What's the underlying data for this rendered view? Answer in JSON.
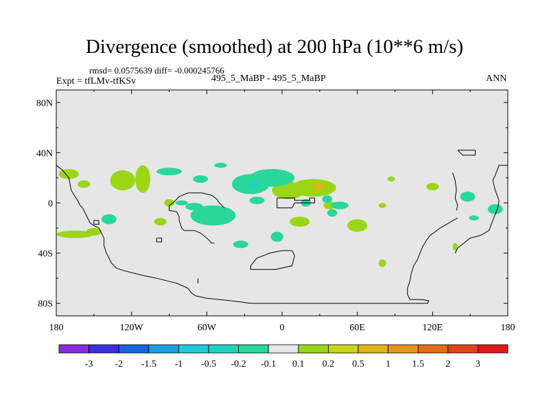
{
  "chart_data": {
    "type": "heatmap",
    "title": "Divergence (smoothed) at 200 hPa (10**6 m/s)",
    "stats_text": "rmsd= 0.0575639 diff= -0.000245766",
    "expt_text": "Expt = tfLMv-tfKSv",
    "center_label": "495_5_MaBP - 495_5_MaBP",
    "season": "ANN",
    "xlim": [
      -180,
      180
    ],
    "ylim": [
      -90,
      90
    ],
    "x_ticks": [
      {
        "value": -180,
        "label": "180"
      },
      {
        "value": -120,
        "label": "120W"
      },
      {
        "value": -60,
        "label": "60W"
      },
      {
        "value": 0,
        "label": "0"
      },
      {
        "value": 60,
        "label": "60E"
      },
      {
        "value": 120,
        "label": "120E"
      },
      {
        "value": 180,
        "label": "180"
      }
    ],
    "y_ticks": [
      {
        "value": 80,
        "label": "80N"
      },
      {
        "value": 40,
        "label": "40N"
      },
      {
        "value": 0,
        "label": "0"
      },
      {
        "value": -40,
        "label": "40S"
      },
      {
        "value": -80,
        "label": "80S"
      }
    ],
    "colorbar": {
      "colors": [
        "#8a2be2",
        "#3d2ee0",
        "#1a64e0",
        "#1a9ee0",
        "#21c8d8",
        "#1fd2c0",
        "#2ad79a",
        "#e6e6e6",
        "#9bd616",
        "#c8d61a",
        "#e0b41a",
        "#e0961a",
        "#e06a1a",
        "#e0441a",
        "#e01a1a"
      ],
      "labels": [
        "-3",
        "-2",
        "-1.5",
        "-1",
        "-0.5",
        "-0.2",
        "-0.1",
        "0.1",
        "0.2",
        "0.5",
        "1",
        "1.5",
        "2",
        "3"
      ]
    },
    "regions": [
      {
        "level": "0.1 to 0.2",
        "color": "#9bd616",
        "lon": -170,
        "lat": 23,
        "dlon": 8,
        "dlat": 4
      },
      {
        "level": "0.1 to 0.2",
        "color": "#9bd616",
        "lon": -158,
        "lat": 15,
        "dlon": 5,
        "dlat": 3
      },
      {
        "level": "0.1 to 0.2",
        "color": "#9bd616",
        "lon": -127,
        "lat": 18,
        "dlon": 10,
        "dlat": 8
      },
      {
        "level": "0.1 to 0.2",
        "color": "#9bd616",
        "lon": -111,
        "lat": 19,
        "dlon": 6,
        "dlat": 11
      },
      {
        "level": "0.1 to 0.2",
        "color": "#9bd616",
        "lon": -165,
        "lat": -25,
        "dlon": 15,
        "dlat": 3
      },
      {
        "level": "0.1 to 0.2",
        "color": "#9bd616",
        "lon": -150,
        "lat": -23,
        "dlon": 6,
        "dlat": 3
      },
      {
        "level": "0.1 to 0.2",
        "color": "#9bd616",
        "lon": -97,
        "lat": -15,
        "dlon": 5,
        "dlat": 3
      },
      {
        "level": "0.1 to 0.2",
        "color": "#9bd616",
        "lon": 5,
        "lat": 10,
        "dlon": 13,
        "dlat": 7
      },
      {
        "level": "0.1 to 0.2",
        "color": "#9bd616",
        "lon": 25,
        "lat": 12,
        "dlon": 18,
        "dlat": 7
      },
      {
        "level": "0.1 to 0.2",
        "color": "#9bd616",
        "lon": 60,
        "lat": -18,
        "dlon": 8,
        "dlat": 5
      },
      {
        "level": "0.1 to 0.2",
        "color": "#9bd616",
        "lon": 38,
        "lat": -2,
        "dlon": 5,
        "dlat": 3
      },
      {
        "level": "0.1 to 0.2",
        "color": "#9bd616",
        "lon": 120,
        "lat": 13,
        "dlon": 5,
        "dlat": 3
      },
      {
        "level": "0.1 to 0.2",
        "color": "#9bd616",
        "lon": 87,
        "lat": 19,
        "dlon": 3,
        "dlat": 2
      },
      {
        "level": "0.1 to 0.2",
        "color": "#9bd616",
        "lon": 14,
        "lat": -15,
        "dlon": 8,
        "dlat": 4
      },
      {
        "level": "0.1 to 0.2",
        "color": "#9bd616",
        "lon": 80,
        "lat": -2,
        "dlon": 3,
        "dlat": 2
      },
      {
        "level": "0.1 to 0.2",
        "color": "#9bd616",
        "lon": 80,
        "lat": -48,
        "dlon": 3,
        "dlat": 3
      },
      {
        "level": "0.1 to 0.2",
        "color": "#9bd616",
        "lon": 138,
        "lat": -35,
        "dlon": 2,
        "dlat": 3
      },
      {
        "level": "0.1 to 0.2",
        "color": "#9bd616",
        "lon": -90,
        "lat": 0,
        "dlon": 4,
        "dlat": 3
      },
      {
        "level": "0.5 to 1",
        "color": "#e0b41a",
        "lon": 29,
        "lat": 13,
        "dlon": 4,
        "dlat": 3
      },
      {
        "level": "-0.2 to -0.1",
        "color": "#2ad79a",
        "lon": -90,
        "lat": 25,
        "dlon": 10,
        "dlat": 3
      },
      {
        "level": "-0.2 to -0.1",
        "color": "#2ad79a",
        "lon": -65,
        "lat": 19,
        "dlon": 6,
        "dlat": 3
      },
      {
        "level": "-0.2 to -0.1",
        "color": "#2ad79a",
        "lon": -49,
        "lat": 30,
        "dlon": 5,
        "dlat": 2
      },
      {
        "level": "-0.2 to -0.1",
        "color": "#2ad79a",
        "lon": -8,
        "lat": 20,
        "dlon": 18,
        "dlat": 7
      },
      {
        "level": "-0.2 to -0.1",
        "color": "#2ad79a",
        "lon": -25,
        "lat": 15,
        "dlon": 15,
        "dlat": 8
      },
      {
        "level": "-0.2 to -0.1",
        "color": "#2ad79a",
        "lon": -20,
        "lat": 2,
        "dlon": 6,
        "dlat": 3
      },
      {
        "level": "-0.2 to -0.1",
        "color": "#2ad79a",
        "lon": -138,
        "lat": -13,
        "dlon": 6,
        "dlat": 4
      },
      {
        "level": "-0.2 to -0.1",
        "color": "#2ad79a",
        "lon": -80,
        "lat": 0,
        "dlon": 5,
        "dlat": 2
      },
      {
        "level": "-0.2 to -0.1",
        "color": "#2ad79a",
        "lon": -55,
        "lat": -10,
        "dlon": 18,
        "dlat": 8
      },
      {
        "level": "-0.2 to -0.1",
        "color": "#2ad79a",
        "lon": -70,
        "lat": -3,
        "dlon": 7,
        "dlat": 3
      },
      {
        "level": "-0.2 to -0.1",
        "color": "#2ad79a",
        "lon": -33,
        "lat": -33,
        "dlon": 6,
        "dlat": 3
      },
      {
        "level": "-0.2 to -0.1",
        "color": "#2ad79a",
        "lon": -4,
        "lat": -27,
        "dlon": 5,
        "dlat": 4
      },
      {
        "level": "-0.2 to -0.1",
        "color": "#2ad79a",
        "lon": 46,
        "lat": -2,
        "dlon": 7,
        "dlat": 3
      },
      {
        "level": "-0.2 to -0.1",
        "color": "#2ad79a",
        "lon": 19,
        "lat": 0,
        "dlon": 4,
        "dlat": 3
      },
      {
        "level": "-0.2 to -0.1",
        "color": "#2ad79a",
        "lon": 36,
        "lat": 3,
        "dlon": 4,
        "dlat": 3
      },
      {
        "level": "-0.2 to -0.1",
        "color": "#2ad79a",
        "lon": 148,
        "lat": 5,
        "dlon": 6,
        "dlat": 4
      },
      {
        "level": "-0.2 to -0.1",
        "color": "#2ad79a",
        "lon": 170,
        "lat": -5,
        "dlon": 6,
        "dlat": 4
      },
      {
        "level": "-0.2 to -0.1",
        "color": "#2ad79a",
        "lon": 153,
        "lat": -12,
        "dlon": 4,
        "dlat": 2
      },
      {
        "level": "-0.2 to -0.1",
        "color": "#2ad79a",
        "lon": 40,
        "lat": -8,
        "dlon": 4,
        "dlat": 3
      },
      {
        "level": "-0.5 to -0.2",
        "color": "#1fd2c0",
        "lon": -22,
        "lat": 14,
        "dlon": 4,
        "dlat": 3
      }
    ],
    "coastlines": [
      [
        [
          -180,
          30
        ],
        [
          -175,
          26
        ],
        [
          -170,
          20
        ],
        [
          -168,
          10
        ],
        [
          -165,
          5
        ],
        [
          -163,
          2
        ],
        [
          -161,
          -2
        ],
        [
          -159,
          -4
        ],
        [
          -157,
          -8
        ],
        [
          -155,
          -12
        ],
        [
          -153,
          -16
        ],
        [
          -150,
          -18
        ],
        [
          -146,
          -20
        ],
        [
          -144,
          -24
        ],
        [
          -142,
          -28
        ],
        [
          -142,
          -34
        ],
        [
          -140,
          -40
        ],
        [
          -138,
          -44
        ],
        [
          -136,
          -48
        ],
        [
          -132,
          -52
        ],
        [
          -126,
          -54
        ],
        [
          -118,
          -56
        ],
        [
          -110,
          -58
        ],
        [
          -100,
          -60
        ],
        [
          -92,
          -62
        ],
        [
          -84,
          -64
        ],
        [
          -75,
          -68
        ],
        [
          -72,
          -72
        ],
        [
          -69,
          -74
        ],
        [
          -60,
          -76
        ],
        [
          -40,
          -78
        ],
        [
          -25,
          -80
        ],
        [
          0,
          -80
        ],
        [
          35,
          -80
        ],
        [
          65,
          -80
        ],
        [
          90,
          -80
        ],
        [
          116,
          -80
        ],
        [
          117,
          -78
        ],
        [
          112,
          -77
        ],
        [
          102,
          -77
        ],
        [
          100,
          -73
        ],
        [
          100,
          -68
        ],
        [
          102,
          -62
        ],
        [
          103,
          -56
        ],
        [
          105,
          -50
        ],
        [
          108,
          -45
        ],
        [
          110,
          -40
        ],
        [
          112,
          -35
        ],
        [
          115,
          -30
        ],
        [
          118,
          -26
        ],
        [
          122,
          -23
        ],
        [
          126,
          -20
        ],
        [
          133,
          -16
        ],
        [
          138,
          -13
        ],
        [
          140,
          -12
        ]
      ],
      [
        [
          -90,
          -2
        ],
        [
          -90,
          -6
        ],
        [
          -84,
          -7
        ],
        [
          -82,
          -11
        ],
        [
          -82,
          -14
        ],
        [
          -80,
          -20
        ],
        [
          -78,
          -22
        ],
        [
          -70,
          -22
        ],
        [
          -65,
          -24
        ],
        [
          -60,
          -28
        ],
        [
          -58,
          -30
        ],
        [
          -56,
          -32
        ],
        [
          -54,
          -32
        ]
      ],
      [
        [
          -90,
          -2
        ],
        [
          -87,
          0
        ],
        [
          -82,
          5
        ],
        [
          -75,
          8
        ],
        [
          -64,
          8
        ],
        [
          -56,
          6
        ],
        [
          -52,
          3
        ],
        [
          -50,
          0
        ],
        [
          -48,
          -2
        ],
        [
          -46,
          -4
        ]
      ],
      [
        [
          -4,
          4
        ],
        [
          10,
          4
        ],
        [
          10,
          2
        ],
        [
          22,
          2
        ],
        [
          22,
          4
        ],
        [
          26,
          4
        ],
        [
          26,
          0
        ],
        [
          10,
          0
        ],
        [
          8,
          -4
        ],
        [
          -4,
          -4
        ],
        [
          -4,
          4
        ]
      ],
      [
        [
          -25,
          -50
        ],
        [
          -20,
          -44
        ],
        [
          -15,
          -42
        ],
        [
          -10,
          -40
        ],
        [
          0,
          -38
        ],
        [
          8,
          -38
        ],
        [
          10,
          -42
        ],
        [
          8,
          -50
        ],
        [
          -5,
          -53
        ],
        [
          -25,
          -53
        ],
        [
          -25,
          -50
        ]
      ],
      [
        [
          -150,
          -14
        ],
        [
          -146,
          -14
        ],
        [
          -146,
          -17
        ],
        [
          -150,
          -17
        ],
        [
          -150,
          -14
        ]
      ],
      [
        [
          -100,
          -28
        ],
        [
          -96,
          -28
        ],
        [
          -96,
          -31
        ],
        [
          -100,
          -31
        ],
        [
          -100,
          -28
        ]
      ],
      [
        [
          140,
          42
        ],
        [
          154,
          42
        ],
        [
          154,
          38
        ],
        [
          144,
          38
        ],
        [
          140,
          42
        ]
      ],
      [
        [
          180,
          30
        ],
        [
          173,
          30
        ],
        [
          170,
          22
        ],
        [
          168,
          18
        ],
        [
          170,
          10
        ],
        [
          173,
          2
        ],
        [
          172,
          -4
        ],
        [
          168,
          -14
        ],
        [
          165,
          -22
        ],
        [
          158,
          -26
        ],
        [
          150,
          -28
        ],
        [
          145,
          -32
        ],
        [
          140,
          -36
        ],
        [
          138,
          -40
        ]
      ],
      [
        [
          136,
          24
        ],
        [
          138,
          18
        ],
        [
          139,
          10
        ],
        [
          138,
          4
        ],
        [
          140,
          -2
        ],
        [
          139,
          -6
        ]
      ],
      [
        [
          -67,
          -60
        ],
        [
          -67,
          -64
        ]
      ]
    ]
  }
}
